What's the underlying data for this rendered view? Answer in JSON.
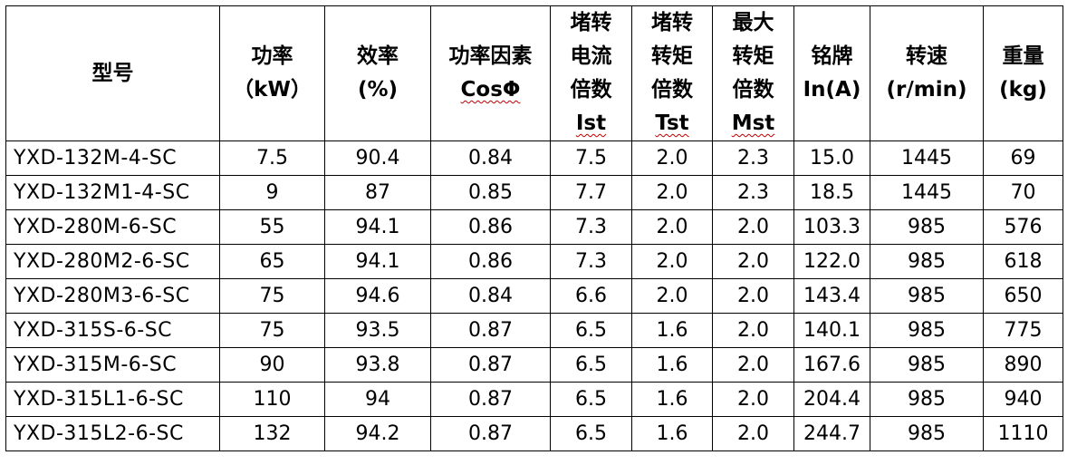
{
  "table": {
    "headers": [
      {
        "lines": [
          "型号"
        ]
      },
      {
        "lines": [
          "功率",
          "（kW）"
        ]
      },
      {
        "lines": [
          "效率",
          "(%)"
        ]
      },
      {
        "lines": [
          "功率因素",
          "CosΦ"
        ]
      },
      {
        "lines": [
          "堵转",
          "电流",
          "倍数",
          "Ist"
        ]
      },
      {
        "lines": [
          "堵转",
          "转矩",
          "倍数",
          "Tst"
        ]
      },
      {
        "lines": [
          "最大",
          "转矩",
          "倍数",
          "Mst"
        ]
      },
      {
        "lines": [
          "铭牌",
          "In(A)"
        ]
      },
      {
        "lines": [
          "转速",
          "(r/min)"
        ]
      },
      {
        "lines": [
          "重量",
          "(kg)"
        ]
      }
    ],
    "rows": [
      [
        "YXD-132M-4-SC",
        "7.5",
        "90.4",
        "0.84",
        "7.5",
        "2.0",
        "2.3",
        "15.0",
        "1445",
        "69"
      ],
      [
        "YXD-132M1-4-SC",
        "9",
        "87",
        "0.85",
        "7.7",
        "2.0",
        "2.3",
        "18.5",
        "1445",
        "70"
      ],
      [
        "YXD-280M-6-SC",
        "55",
        "94.1",
        "0.86",
        "7.3",
        "2.0",
        "2.0",
        "103.3",
        "985",
        "576"
      ],
      [
        "YXD-280M2-6-SC",
        "65",
        "94.1",
        "0.86",
        "7.3",
        "2.0",
        "2.0",
        "122.0",
        "985",
        "618"
      ],
      [
        "YXD-280M3-6-SC",
        "75",
        "94.6",
        "0.84",
        "6.6",
        "2.0",
        "2.0",
        "143.4",
        "985",
        "650"
      ],
      [
        "YXD-315S-6-SC",
        "75",
        "93.5",
        "0.87",
        "6.5",
        "1.6",
        "2.0",
        "140.1",
        "985",
        "775"
      ],
      [
        "YXD-315M-6-SC",
        "90",
        "93.8",
        "0.87",
        "6.5",
        "1.6",
        "2.0",
        "167.6",
        "985",
        "890"
      ],
      [
        "YXD-315L1-6-SC",
        "110",
        "94",
        "0.87",
        "6.5",
        "1.6",
        "2.0",
        "204.4",
        "985",
        "940"
      ],
      [
        "YXD-315L2-6-SC",
        "132",
        "94.2",
        "0.87",
        "6.5",
        "1.6",
        "2.0",
        "244.7",
        "985",
        "1110"
      ]
    ]
  }
}
